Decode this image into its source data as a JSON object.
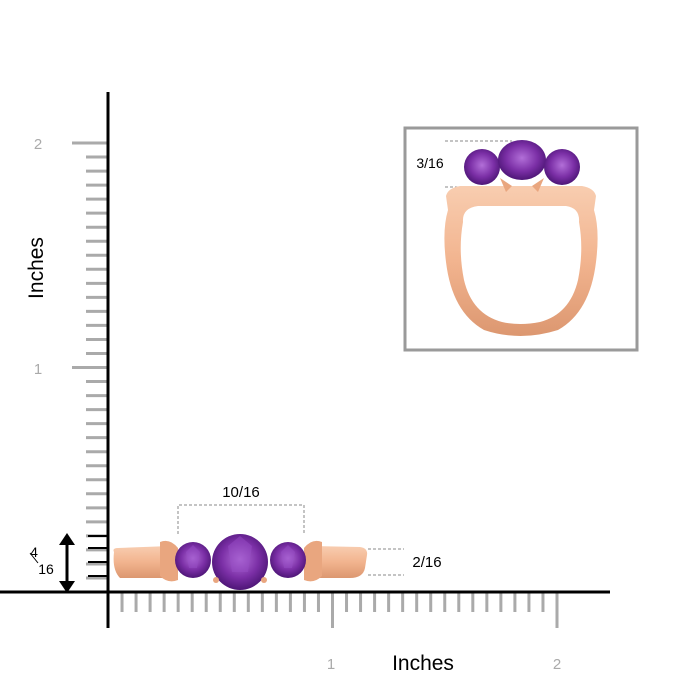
{
  "axis": {
    "y_label": "Inches",
    "x_label": "Inches",
    "y_ticks": [
      "1",
      "2"
    ],
    "x_ticks": [
      "1",
      "2"
    ]
  },
  "dimensions": {
    "width": "10/16",
    "height": "2/16",
    "side_height_top": "4",
    "side_height_bottom": "16",
    "inset_height": "3/16"
  },
  "colors": {
    "metal": "#f2b48f",
    "metal_dark": "#d98d66",
    "gem": "#7b2fa6",
    "gem_light": "#b070d6",
    "axis": "#000000",
    "tick": "#aaaaaa",
    "inset_border": "#9a9a9a"
  },
  "icons": [
    "double-arrow-icon"
  ]
}
